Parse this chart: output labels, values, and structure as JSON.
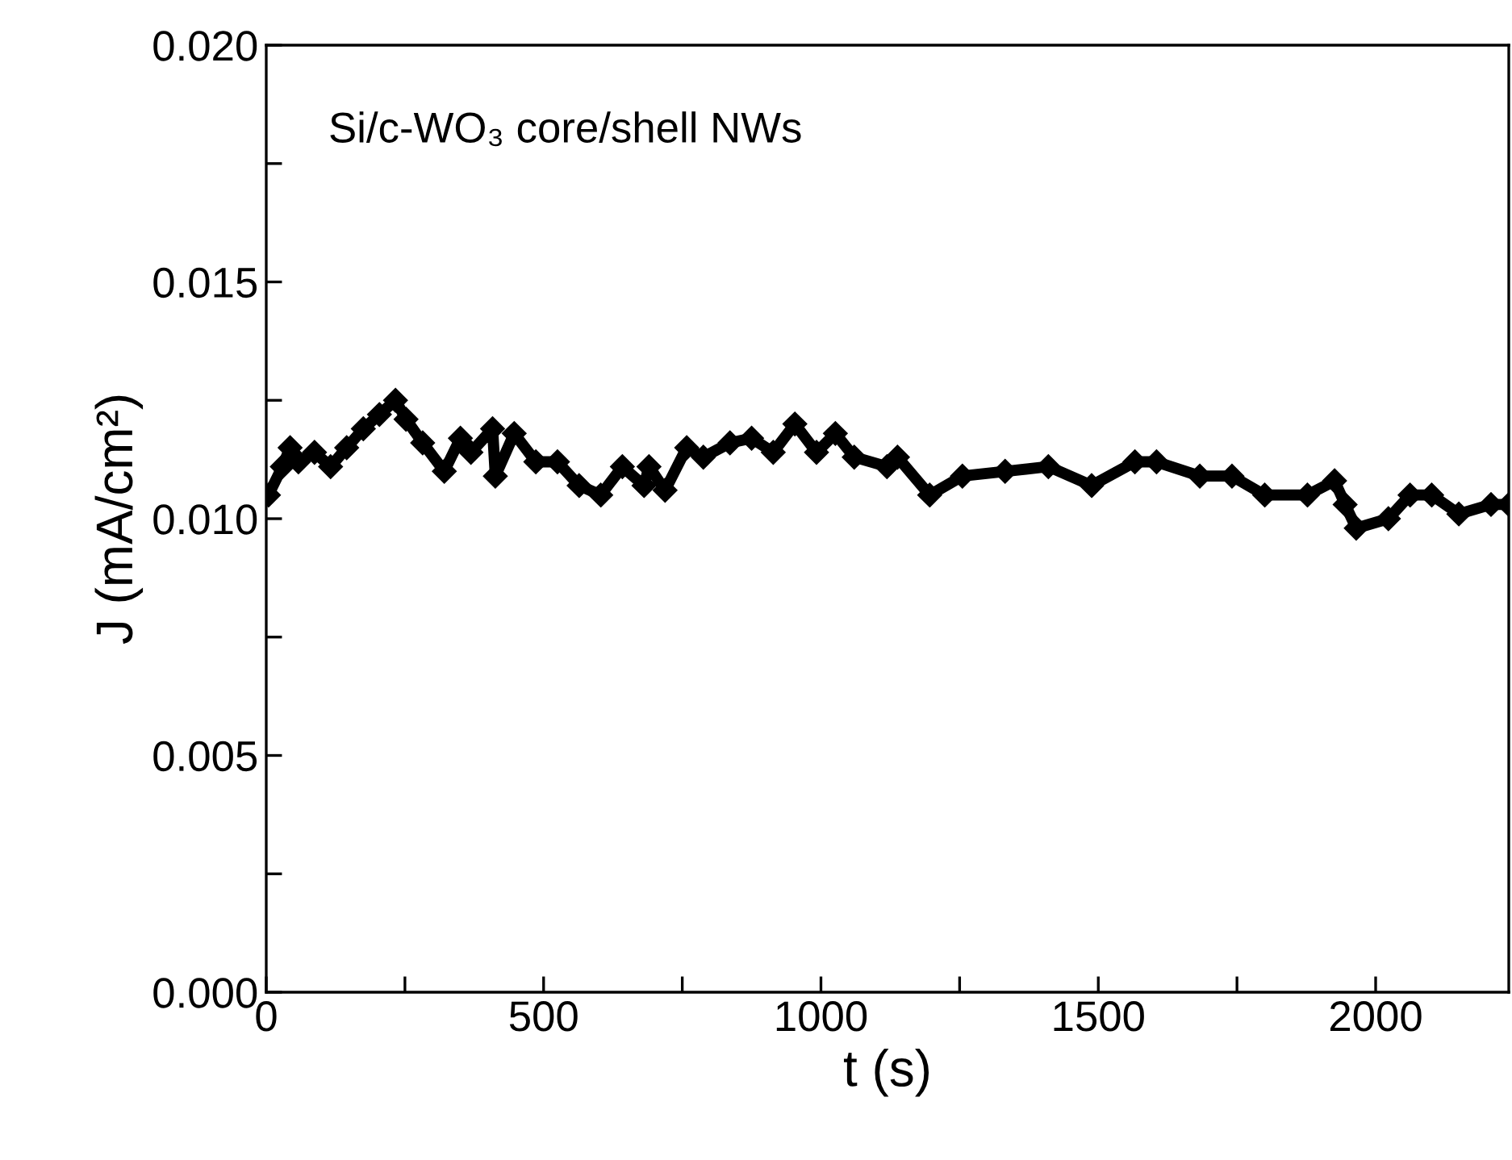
{
  "chart_data": {
    "type": "line",
    "xlabel": "t (s)",
    "ylabel": "J (mA/cm²)",
    "annotations": [
      "Si/c-WO₃ core/shell NWs"
    ],
    "xlim": [
      0,
      2240
    ],
    "ylim": [
      0,
      0.02
    ],
    "xticks": [
      0,
      {
        "value": 250,
        "label": null
      },
      500,
      {
        "value": 750,
        "label": null
      },
      1000,
      {
        "value": 1250,
        "label": null
      },
      1500,
      {
        "value": 1750,
        "label": null
      },
      2000
    ],
    "yticks": [
      {
        "value": 0,
        "label": "0.000"
      },
      {
        "value": 0.0025,
        "label": null
      },
      {
        "value": 0.005,
        "label": "0.005"
      },
      {
        "value": 0.0075,
        "label": null
      },
      {
        "value": 0.01,
        "label": "0.010"
      },
      {
        "value": 0.0125,
        "label": null
      },
      {
        "value": 0.015,
        "label": "0.015"
      },
      {
        "value": 0.0175,
        "label": null
      },
      {
        "value": 0.02,
        "label": "0.020"
      }
    ],
    "grid": false,
    "legend": false,
    "marker": "diamond",
    "line_style": "solid",
    "x": [
      4,
      29,
      43,
      58,
      87,
      116,
      145,
      175,
      204,
      233,
      252,
      282,
      321,
      350,
      369,
      408,
      413,
      447,
      486,
      525,
      564,
      603,
      642,
      681,
      690,
      719,
      758,
      788,
      836,
      875,
      914,
      953,
      992,
      1026,
      1060,
      1119,
      1138,
      1196,
      1255,
      1332,
      1410,
      1488,
      1566,
      1605,
      1683,
      1741,
      1800,
      1877,
      1926,
      1945,
      1965,
      2023,
      2062,
      2101,
      2150,
      2208,
      2240
    ],
    "series": [
      {
        "color": "#000000",
        "values": [
          0.0105,
          0.0111,
          0.0115,
          0.0112,
          0.0114,
          0.0111,
          0.0115,
          0.0119,
          0.0122,
          0.0125,
          0.0121,
          0.0116,
          0.011,
          0.0117,
          0.0114,
          0.0119,
          0.0109,
          0.0118,
          0.0112,
          0.0112,
          0.0107,
          0.0105,
          0.0111,
          0.0107,
          0.0111,
          0.0106,
          0.0115,
          0.0113,
          0.0116,
          0.0117,
          0.0114,
          0.012,
          0.0114,
          0.0118,
          0.0113,
          0.0111,
          0.0113,
          0.0105,
          0.0109,
          0.011,
          0.0111,
          0.0107,
          0.0112,
          0.0112,
          0.0109,
          0.0109,
          0.0105,
          0.0105,
          0.0108,
          0.0103,
          0.0098,
          0.01,
          0.0105,
          0.0105,
          0.0101,
          0.0103,
          0.0103
        ]
      }
    ]
  }
}
